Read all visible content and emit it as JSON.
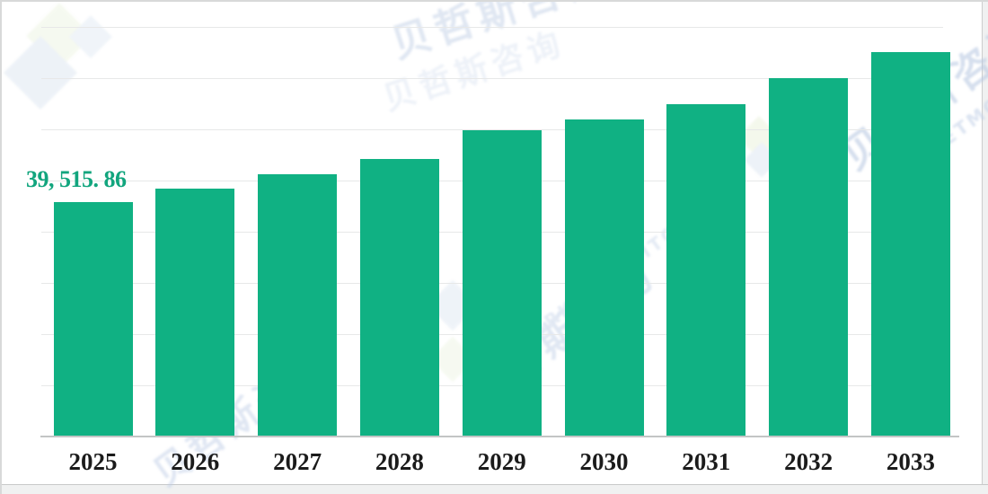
{
  "chart_data": {
    "type": "bar",
    "categories": [
      "2025",
      "2026",
      "2027",
      "2028",
      "2029",
      "2030",
      "2031",
      "2032",
      "2033"
    ],
    "values": [
      39515.86,
      41790,
      44210,
      46860,
      51630,
      53445,
      56020,
      60410,
      64880
    ],
    "values_note": "only 2025 is labeled on the chart; other values estimated from bar heights vs gridlines",
    "annotation": {
      "category": "2025",
      "text": "39, 515. 86",
      "value": 39515.86
    },
    "title": "",
    "xlabel": "",
    "ylabel": "",
    "ylim": [
      0,
      69065
    ],
    "y_axis_visible": false,
    "grid": "horizontal",
    "legend": "none",
    "bar_color": "#10b183",
    "annotation_color": "#12a57e",
    "tick_label_color": "#1b1b1b",
    "gridline_color": "#e7e8e8",
    "axis_line_color": "#c3c5c5"
  },
  "watermark": {
    "cn": "贝哲斯咨询",
    "en": "MARKETMONITOR",
    "color": "#b9c9e2"
  }
}
